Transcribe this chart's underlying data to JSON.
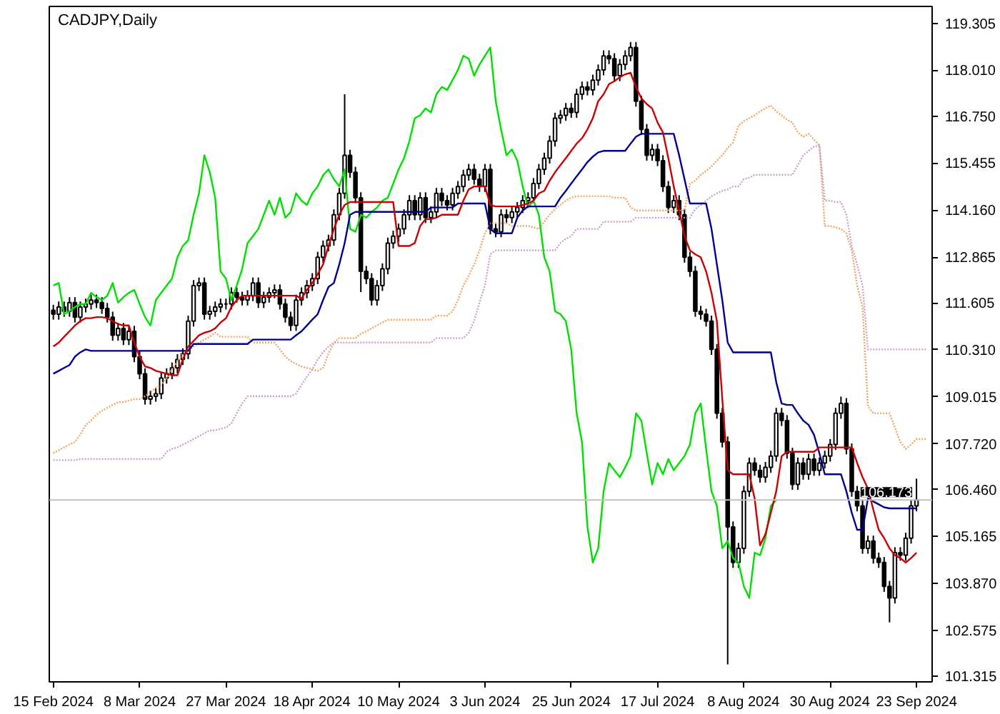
{
  "chart_data": {
    "type": "candlestick",
    "title": "CADJPY,Daily",
    "categories": [
      "15 Feb 2024",
      null,
      null,
      null,
      null,
      null,
      null,
      null,
      null,
      null,
      null,
      null,
      null,
      null,
      null,
      null,
      "8 Mar 2024",
      null,
      null,
      null,
      null,
      null,
      null,
      null,
      null,
      null,
      null,
      null,
      null,
      null,
      null,
      null,
      "27 Mar 2024",
      null,
      null,
      null,
      null,
      null,
      null,
      null,
      null,
      null,
      null,
      null,
      null,
      null,
      null,
      null,
      "18 Apr 2024",
      null,
      null,
      null,
      null,
      null,
      null,
      null,
      null,
      null,
      null,
      null,
      null,
      null,
      null,
      null,
      "10 May 2024",
      null,
      null,
      null,
      null,
      null,
      null,
      null,
      null,
      null,
      null,
      null,
      null,
      null,
      null,
      null,
      "3 Jun 2024",
      null,
      null,
      null,
      null,
      null,
      null,
      null,
      null,
      null,
      null,
      null,
      null,
      null,
      null,
      null,
      "25 Jun 2024",
      null,
      null,
      null,
      null,
      null,
      null,
      null,
      null,
      null,
      null,
      null,
      null,
      null,
      null,
      null,
      "17 Jul 2024",
      null,
      null,
      null,
      null,
      null,
      null,
      null,
      null,
      null,
      null,
      null,
      null,
      null,
      null,
      null,
      "8 Aug 2024",
      null,
      null,
      null,
      null,
      null,
      null,
      null,
      null,
      null,
      null,
      null,
      null,
      null,
      null,
      null,
      "30 Aug 2024",
      null,
      null,
      null,
      null,
      null,
      null,
      null,
      null,
      null,
      null,
      null,
      null,
      null,
      null,
      null,
      "23 Sep 2024",
      null,
      null
    ],
    "ohlc": [
      [
        111.4,
        111.55,
        111.14,
        111.29
      ],
      [
        111.29,
        111.64,
        111.14,
        111.49
      ],
      [
        111.49,
        111.64,
        111.22,
        111.37
      ],
      [
        111.37,
        111.76,
        111.22,
        111.61
      ],
      [
        111.61,
        111.76,
        111.06,
        111.21
      ],
      [
        111.21,
        111.64,
        111.06,
        111.49
      ],
      [
        111.49,
        111.72,
        111.34,
        111.57
      ],
      [
        111.57,
        111.83,
        111.42,
        111.68
      ],
      [
        111.68,
        111.83,
        111.46,
        111.61
      ],
      [
        111.61,
        111.76,
        111.3,
        111.45
      ],
      [
        111.45,
        111.6,
        111.06,
        111.21
      ],
      [
        111.21,
        111.36,
        110.56,
        110.71
      ],
      [
        110.71,
        111.05,
        110.56,
        110.9
      ],
      [
        110.9,
        111.05,
        110.44,
        110.59
      ],
      [
        110.59,
        110.97,
        110.44,
        110.82
      ],
      [
        110.82,
        110.97,
        109.97,
        110.12
      ],
      [
        110.12,
        110.27,
        109.5,
        109.65
      ],
      [
        109.65,
        109.8,
        108.8,
        108.95
      ],
      [
        108.95,
        109.18,
        108.8,
        109.03
      ],
      [
        109.03,
        109.25,
        108.88,
        109.1
      ],
      [
        109.1,
        109.68,
        108.95,
        109.53
      ],
      [
        109.53,
        109.8,
        109.38,
        109.65
      ],
      [
        109.65,
        109.96,
        109.5,
        109.81
      ],
      [
        109.81,
        110.19,
        109.66,
        110.04
      ],
      [
        110.04,
        110.35,
        109.89,
        110.2
      ],
      [
        110.2,
        111.25,
        110.05,
        111.1
      ],
      [
        111.1,
        112.23,
        110.95,
        112.08
      ],
      [
        112.08,
        112.3,
        111.93,
        112.15
      ],
      [
        112.15,
        112.3,
        111.14,
        111.29
      ],
      [
        111.29,
        111.52,
        111.14,
        111.37
      ],
      [
        111.37,
        111.64,
        111.22,
        111.49
      ],
      [
        111.49,
        111.72,
        111.34,
        111.57
      ],
      [
        111.57,
        111.72,
        111.42,
        111.57
      ],
      [
        111.57,
        112.03,
        111.42,
        111.88
      ],
      [
        111.88,
        112.03,
        111.61,
        111.76
      ],
      [
        111.76,
        111.91,
        111.53,
        111.68
      ],
      [
        111.68,
        111.95,
        111.53,
        111.8
      ],
      [
        111.8,
        112.3,
        111.65,
        112.15
      ],
      [
        112.15,
        112.3,
        111.46,
        111.61
      ],
      [
        111.61,
        111.91,
        111.46,
        111.76
      ],
      [
        111.76,
        112.03,
        111.61,
        111.88
      ],
      [
        111.88,
        112.11,
        111.73,
        111.96
      ],
      [
        111.96,
        112.11,
        111.42,
        111.57
      ],
      [
        111.57,
        111.72,
        111.06,
        111.21
      ],
      [
        111.21,
        111.36,
        110.83,
        110.98
      ],
      [
        110.98,
        111.83,
        110.83,
        111.68
      ],
      [
        111.68,
        112.03,
        111.53,
        111.88
      ],
      [
        111.88,
        112.23,
        111.73,
        112.08
      ],
      [
        112.08,
        112.42,
        111.93,
        112.27
      ],
      [
        112.27,
        113.01,
        112.12,
        112.86
      ],
      [
        112.86,
        113.32,
        112.71,
        113.17
      ],
      [
        113.17,
        113.48,
        113.02,
        113.33
      ],
      [
        113.33,
        114.18,
        113.18,
        114.03
      ],
      [
        114.03,
        114.77,
        113.88,
        114.62
      ],
      [
        114.62,
        117.35,
        114.47,
        115.67
      ],
      [
        115.67,
        115.82,
        115.05,
        115.2
      ],
      [
        115.2,
        115.35,
        114.35,
        114.5
      ],
      [
        114.5,
        114.65,
        111.9,
        112.47
      ],
      [
        112.47,
        112.62,
        112.12,
        112.27
      ],
      [
        112.27,
        112.42,
        111.53,
        111.68
      ],
      [
        111.68,
        112.23,
        111.53,
        112.08
      ],
      [
        112.08,
        112.69,
        111.93,
        112.54
      ],
      [
        112.54,
        113.4,
        112.39,
        113.25
      ],
      [
        113.25,
        113.59,
        113.1,
        113.44
      ],
      [
        113.44,
        113.79,
        113.29,
        113.64
      ],
      [
        113.64,
        114.18,
        113.49,
        114.03
      ],
      [
        114.03,
        114.57,
        113.88,
        114.42
      ],
      [
        114.42,
        114.57,
        113.88,
        114.03
      ],
      [
        114.03,
        114.65,
        113.88,
        114.5
      ],
      [
        114.5,
        114.65,
        113.8,
        113.95
      ],
      [
        113.95,
        114.26,
        113.8,
        114.11
      ],
      [
        114.11,
        114.77,
        113.96,
        114.62
      ],
      [
        114.62,
        114.77,
        114.27,
        114.42
      ],
      [
        114.42,
        114.57,
        114.15,
        114.3
      ],
      [
        114.3,
        114.77,
        114.15,
        114.62
      ],
      [
        114.62,
        114.96,
        114.47,
        114.81
      ],
      [
        114.81,
        115.27,
        114.66,
        115.12
      ],
      [
        115.12,
        115.43,
        114.97,
        115.28
      ],
      [
        115.28,
        115.43,
        114.86,
        115.01
      ],
      [
        115.01,
        115.16,
        114.66,
        114.81
      ],
      [
        114.81,
        115.43,
        114.66,
        115.28
      ],
      [
        115.28,
        115.43,
        113.49,
        113.64
      ],
      [
        113.64,
        113.79,
        113.41,
        113.56
      ],
      [
        113.56,
        114.18,
        113.41,
        114.03
      ],
      [
        114.03,
        114.18,
        113.8,
        113.95
      ],
      [
        113.95,
        114.26,
        113.8,
        114.11
      ],
      [
        114.11,
        114.38,
        113.96,
        114.23
      ],
      [
        114.23,
        114.57,
        114.08,
        114.42
      ],
      [
        114.42,
        114.65,
        114.27,
        114.5
      ],
      [
        114.5,
        115.04,
        114.35,
        114.89
      ],
      [
        114.89,
        115.43,
        114.74,
        115.28
      ],
      [
        115.28,
        115.74,
        115.13,
        115.59
      ],
      [
        115.59,
        116.21,
        115.44,
        116.06
      ],
      [
        116.06,
        116.84,
        115.91,
        116.69
      ],
      [
        116.69,
        116.92,
        116.54,
        116.77
      ],
      [
        116.77,
        117.11,
        116.62,
        116.96
      ],
      [
        116.96,
        117.11,
        116.7,
        116.85
      ],
      [
        116.85,
        117.5,
        116.7,
        117.35
      ],
      [
        117.35,
        117.7,
        117.2,
        117.55
      ],
      [
        117.55,
        117.7,
        117.32,
        117.47
      ],
      [
        117.47,
        117.89,
        117.32,
        117.74
      ],
      [
        117.74,
        118.17,
        117.59,
        118.02
      ],
      [
        118.02,
        118.56,
        117.87,
        118.41
      ],
      [
        118.41,
        118.56,
        118.18,
        118.33
      ],
      [
        118.33,
        118.48,
        117.71,
        117.86
      ],
      [
        117.86,
        118.32,
        117.71,
        118.17
      ],
      [
        118.17,
        118.56,
        118.02,
        118.41
      ],
      [
        118.41,
        118.79,
        118.26,
        118.64
      ],
      [
        118.64,
        118.79,
        117.01,
        117.16
      ],
      [
        117.16,
        117.31,
        116.23,
        116.38
      ],
      [
        116.38,
        116.53,
        115.52,
        115.67
      ],
      [
        115.67,
        115.98,
        115.52,
        115.83
      ],
      [
        115.83,
        115.98,
        115.37,
        115.52
      ],
      [
        115.52,
        115.67,
        114.66,
        114.81
      ],
      [
        114.81,
        114.96,
        114.08,
        114.23
      ],
      [
        114.23,
        114.57,
        114.08,
        114.42
      ],
      [
        114.42,
        114.57,
        113.88,
        114.03
      ],
      [
        114.03,
        114.18,
        112.71,
        112.86
      ],
      [
        112.86,
        113.01,
        112.32,
        112.47
      ],
      [
        112.47,
        112.62,
        111.22,
        111.37
      ],
      [
        111.37,
        111.52,
        111.14,
        111.29
      ],
      [
        111.29,
        111.44,
        110.95,
        111.1
      ],
      [
        111.1,
        111.25,
        110.17,
        110.32
      ],
      [
        110.32,
        110.47,
        108.41,
        108.56
      ],
      [
        108.56,
        108.71,
        107.62,
        107.77
      ],
      [
        107.77,
        107.92,
        101.64,
        105.43
      ],
      [
        105.43,
        105.58,
        104.3,
        104.45
      ],
      [
        104.45,
        104.99,
        104.3,
        104.84
      ],
      [
        104.84,
        106.56,
        104.69,
        106.41
      ],
      [
        106.41,
        107.34,
        106.26,
        107.19
      ],
      [
        107.19,
        107.34,
        106.84,
        106.99
      ],
      [
        106.99,
        107.14,
        106.65,
        106.8
      ],
      [
        106.8,
        107.22,
        106.65,
        107.07
      ],
      [
        107.07,
        107.53,
        106.92,
        107.38
      ],
      [
        107.38,
        108.71,
        107.23,
        108.56
      ],
      [
        108.56,
        108.71,
        108.21,
        108.36
      ],
      [
        108.36,
        108.51,
        107.31,
        107.46
      ],
      [
        107.46,
        107.61,
        106.45,
        106.6
      ],
      [
        106.6,
        107.34,
        106.45,
        107.19
      ],
      [
        107.19,
        107.34,
        106.73,
        106.88
      ],
      [
        106.88,
        107.45,
        106.73,
        107.3
      ],
      [
        107.3,
        107.45,
        106.84,
        106.99
      ],
      [
        106.99,
        107.34,
        106.84,
        107.19
      ],
      [
        107.19,
        107.53,
        107.04,
        107.38
      ],
      [
        107.38,
        107.85,
        107.23,
        107.7
      ],
      [
        107.7,
        108.71,
        107.55,
        108.56
      ],
      [
        108.56,
        109.02,
        108.41,
        108.83
      ],
      [
        108.83,
        108.98,
        107.43,
        107.58
      ],
      [
        107.58,
        107.73,
        106.26,
        106.41
      ],
      [
        106.41,
        106.56,
        105.86,
        106.01
      ],
      [
        106.01,
        106.16,
        104.69,
        104.84
      ],
      [
        104.84,
        105.19,
        104.69,
        105.04
      ],
      [
        105.04,
        105.19,
        104.42,
        104.57
      ],
      [
        104.57,
        104.72,
        104.3,
        104.45
      ],
      [
        104.45,
        104.6,
        103.64,
        103.79
      ],
      [
        103.79,
        103.94,
        102.8,
        103.47
      ],
      [
        103.47,
        104.87,
        103.32,
        104.72
      ],
      [
        104.72,
        104.87,
        104.5,
        104.65
      ],
      [
        104.65,
        105.27,
        104.5,
        105.12
      ],
      [
        105.12,
        106.16,
        104.97,
        106.01
      ],
      [
        106.01,
        106.76,
        105.86,
        106.17
      ],
      null,
      null
    ],
    "series": [
      {
        "type": "line",
        "line_style": "dotted",
        "color": "#f4a460",
        "values": [
          107.46,
          107.54,
          107.62,
          107.7,
          107.77,
          107.97,
          108.24,
          108.36,
          108.52,
          108.63,
          108.71,
          108.79,
          108.87,
          108.87,
          108.91,
          108.95,
          108.95,
          109.03,
          109.14,
          109.26,
          109.34,
          109.53,
          109.77,
          110.0,
          110.2,
          110.28,
          110.4,
          110.51,
          110.59,
          110.67,
          110.78,
          110.67,
          110.67,
          110.67,
          110.67,
          110.67,
          110.67,
          110.51,
          110.51,
          110.51,
          110.51,
          110.51,
          110.32,
          110.12,
          110.0,
          109.92,
          109.85,
          109.81,
          109.77,
          109.73,
          109.81,
          110.2,
          110.51,
          110.63,
          110.63,
          110.63,
          110.63,
          110.75,
          110.82,
          110.9,
          110.98,
          111.06,
          111.14,
          111.14,
          111.14,
          111.14,
          111.14,
          111.14,
          111.14,
          111.14,
          111.14,
          111.25,
          111.25,
          111.25,
          111.37,
          111.68,
          112.08,
          112.35,
          112.66,
          113.05,
          113.52,
          113.8,
          113.8,
          113.8,
          113.8,
          113.72,
          113.72,
          113.72,
          113.72,
          113.68,
          113.64,
          113.84,
          114.03,
          114.19,
          114.3,
          114.42,
          114.5,
          114.54,
          114.54,
          114.54,
          114.54,
          114.54,
          114.54,
          114.54,
          114.5,
          114.5,
          114.5,
          114.23,
          114.15,
          114.15,
          114.15,
          114.15,
          114.15,
          114.15,
          114.15,
          114.15,
          114.15,
          114.15,
          114.89,
          114.97,
          115.13,
          115.24,
          115.36,
          115.52,
          115.67,
          115.87,
          116.02,
          116.49,
          116.61,
          116.69,
          116.77,
          116.88,
          116.96,
          117.04,
          116.88,
          116.77,
          116.65,
          116.57,
          116.3,
          116.18,
          116.26,
          116.1,
          115.94,
          113.72,
          113.72,
          113.68,
          113.64,
          113.52,
          113.05,
          112.08,
          111.49,
          108.75,
          108.56,
          108.56,
          108.56,
          108.56,
          108.17,
          107.77,
          107.58,
          107.7,
          107.85,
          107.85,
          107.85
        ]
      },
      {
        "type": "line",
        "line_style": "dotted",
        "color": "#c8a2c8",
        "values": [
          107.27,
          107.27,
          107.27,
          107.27,
          107.27,
          107.3,
          107.3,
          107.3,
          107.3,
          107.3,
          107.3,
          107.3,
          107.3,
          107.3,
          107.3,
          107.3,
          107.3,
          107.3,
          107.3,
          107.3,
          107.3,
          107.5,
          107.58,
          107.62,
          107.7,
          107.77,
          107.85,
          107.93,
          108.01,
          108.09,
          108.09,
          108.13,
          108.17,
          108.28,
          108.56,
          108.83,
          109.03,
          109.03,
          109.03,
          109.03,
          109.03,
          109.03,
          109.03,
          109.03,
          109.03,
          109.1,
          109.34,
          109.57,
          109.77,
          110.04,
          110.24,
          110.4,
          110.51,
          110.51,
          110.51,
          110.51,
          110.51,
          110.51,
          110.51,
          110.51,
          110.51,
          110.51,
          110.51,
          110.51,
          110.51,
          110.51,
          110.51,
          110.51,
          110.51,
          110.51,
          110.51,
          110.63,
          110.63,
          110.63,
          110.63,
          110.63,
          110.63,
          110.78,
          111.1,
          111.61,
          112.08,
          112.94,
          113.05,
          113.05,
          113.05,
          113.05,
          113.05,
          113.05,
          113.05,
          113.05,
          113.05,
          113.05,
          113.05,
          113.05,
          113.25,
          113.37,
          113.44,
          113.64,
          113.64,
          113.64,
          113.64,
          113.64,
          113.84,
          113.84,
          113.84,
          113.84,
          113.84,
          113.84,
          113.95,
          113.95,
          113.95,
          113.95,
          113.95,
          113.95,
          113.95,
          113.95,
          113.95,
          113.95,
          113.95,
          114.19,
          114.3,
          114.42,
          114.54,
          114.62,
          114.69,
          114.73,
          114.81,
          114.81,
          115.01,
          115.05,
          115.13,
          115.13,
          115.13,
          115.13,
          115.13,
          115.13,
          115.13,
          115.13,
          115.4,
          115.67,
          115.79,
          115.91,
          115.94,
          114.42,
          114.42,
          114.38,
          114.38,
          114.03,
          113.17,
          112.66,
          112.08,
          110.32,
          110.32,
          110.32,
          110.32,
          110.32,
          110.32,
          110.32,
          110.32,
          110.32,
          110.32,
          110.32,
          110.32
        ]
      },
      {
        "type": "line",
        "color": "#00e000",
        "values": [
          112.08,
          112.15,
          111.29,
          111.37,
          111.49,
          111.57,
          111.57,
          111.88,
          111.76,
          111.68,
          111.8,
          112.15,
          111.61,
          111.76,
          111.88,
          111.96,
          111.57,
          111.21,
          110.98,
          111.68,
          111.88,
          112.08,
          112.27,
          112.86,
          113.17,
          113.33,
          114.03,
          114.62,
          115.67,
          115.2,
          114.5,
          112.47,
          112.27,
          111.68,
          112.08,
          112.54,
          113.25,
          113.44,
          113.64,
          114.03,
          114.42,
          114.03,
          114.5,
          113.95,
          114.11,
          114.62,
          114.42,
          114.3,
          114.62,
          114.81,
          115.12,
          115.28,
          115.01,
          114.81,
          115.28,
          113.64,
          113.56,
          114.03,
          113.95,
          114.11,
          114.23,
          114.42,
          114.5,
          114.89,
          115.28,
          115.59,
          116.06,
          116.69,
          116.77,
          116.96,
          116.85,
          117.35,
          117.55,
          117.47,
          117.74,
          118.02,
          118.41,
          118.33,
          117.86,
          118.17,
          118.41,
          118.64,
          117.16,
          116.38,
          115.67,
          115.83,
          115.52,
          114.81,
          114.23,
          114.42,
          114.03,
          112.86,
          112.47,
          111.37,
          111.29,
          111.1,
          110.32,
          108.56,
          107.77,
          105.43,
          104.45,
          104.84,
          106.41,
          107.19,
          106.99,
          106.8,
          107.07,
          107.38,
          108.56,
          108.36,
          107.46,
          106.6,
          107.19,
          106.88,
          107.3,
          106.99,
          107.19,
          107.38,
          107.7,
          108.56,
          108.83,
          107.58,
          106.41,
          106.01,
          104.84,
          105.04,
          104.57,
          104.45,
          103.79,
          103.47,
          104.72,
          104.65,
          105.12,
          106.01,
          106.17,
          null,
          null,
          null,
          null,
          null,
          null,
          null,
          null,
          null,
          null,
          null,
          null,
          null,
          null,
          null,
          null,
          null,
          null,
          null,
          null,
          null,
          null,
          null,
          null,
          null,
          null,
          null,
          null
        ]
      },
      {
        "type": "line",
        "color": "#000090",
        "values": [
          109.65,
          109.73,
          109.81,
          109.89,
          110.12,
          110.24,
          110.32,
          110.28,
          110.28,
          110.28,
          110.28,
          110.28,
          110.28,
          110.28,
          110.28,
          110.28,
          110.28,
          110.28,
          110.28,
          110.28,
          110.28,
          110.28,
          110.28,
          110.28,
          110.28,
          110.28,
          110.47,
          110.47,
          110.47,
          110.47,
          110.47,
          110.47,
          110.47,
          110.47,
          110.47,
          110.47,
          110.47,
          110.59,
          110.59,
          110.59,
          110.59,
          110.59,
          110.59,
          110.59,
          110.59,
          110.71,
          110.82,
          110.98,
          111.14,
          111.29,
          111.68,
          112.04,
          112.15,
          112.66,
          113.25,
          114.03,
          114.11,
          114.11,
          114.11,
          114.11,
          114.11,
          114.11,
          114.11,
          114.11,
          114.11,
          114.11,
          114.11,
          114.11,
          114.11,
          114.11,
          114.23,
          114.23,
          114.23,
          114.23,
          114.23,
          114.34,
          114.34,
          114.34,
          114.34,
          114.34,
          114.34,
          113.64,
          113.52,
          113.52,
          113.52,
          113.52,
          113.95,
          114.15,
          114.26,
          114.26,
          114.26,
          114.26,
          114.26,
          114.26,
          114.5,
          114.69,
          114.89,
          115.09,
          115.28,
          115.48,
          115.63,
          115.75,
          115.79,
          115.79,
          115.79,
          115.79,
          115.79,
          115.99,
          116.18,
          116.26,
          116.26,
          116.26,
          116.26,
          116.26,
          116.26,
          116.26,
          115.67,
          115.01,
          114.34,
          114.34,
          114.34,
          114.34,
          113.64,
          112.66,
          111.68,
          110.51,
          110.24,
          110.24,
          110.24,
          110.24,
          110.24,
          110.24,
          110.24,
          110.24,
          109.42,
          108.83,
          108.79,
          108.79,
          108.56,
          108.36,
          108.24,
          107.97,
          107.46,
          106.88,
          106.88,
          106.88,
          106.88,
          106.41,
          105.82,
          105.35,
          105.35,
          106.21,
          106.13,
          106.05,
          105.97,
          105.94,
          105.94,
          105.94,
          105.94,
          105.94,
          105.94,
          null,
          null
        ]
      },
      {
        "type": "line",
        "color": "#cc0000",
        "values": [
          110.4,
          110.51,
          110.67,
          110.82,
          110.98,
          111.1,
          111.18,
          111.18,
          111.21,
          111.21,
          111.18,
          111.1,
          111.02,
          110.98,
          110.98,
          110.51,
          110.12,
          109.85,
          109.81,
          109.73,
          109.69,
          109.65,
          109.61,
          109.61,
          110.04,
          110.4,
          110.55,
          110.71,
          110.78,
          110.82,
          110.9,
          111.06,
          111.18,
          111.49,
          111.68,
          111.8,
          111.8,
          111.8,
          111.8,
          111.8,
          111.8,
          111.8,
          111.8,
          111.8,
          111.8,
          111.8,
          111.72,
          111.96,
          112.15,
          112.39,
          112.66,
          113.17,
          113.64,
          114.03,
          114.3,
          114.38,
          114.38,
          114.38,
          114.38,
          114.38,
          114.38,
          114.38,
          114.38,
          114.38,
          113.17,
          113.17,
          113.17,
          113.25,
          113.72,
          113.91,
          113.91,
          113.95,
          114.03,
          114.03,
          114.03,
          114.03,
          114.42,
          114.73,
          114.81,
          114.81,
          114.81,
          114.3,
          114.26,
          114.26,
          114.26,
          114.26,
          114.26,
          114.3,
          114.34,
          114.42,
          114.62,
          114.69,
          114.97,
          115.2,
          115.4,
          115.59,
          115.79,
          115.99,
          116.14,
          116.38,
          116.69,
          117.16,
          117.35,
          117.63,
          117.71,
          117.82,
          117.9,
          117.94,
          117.55,
          117.24,
          117.08,
          116.96,
          116.57,
          116.3,
          115.59,
          114.81,
          114.15,
          113.44,
          113.05,
          112.94,
          112.86,
          112.47,
          111.88,
          111.1,
          108.95,
          106.99,
          106.88,
          106.88,
          106.88,
          106.88,
          106.21,
          104.92,
          105.23,
          105.82,
          106.41,
          107.38,
          107.5,
          107.5,
          107.5,
          107.5,
          107.5,
          107.5,
          107.62,
          107.62,
          107.62,
          107.62,
          107.62,
          107.62,
          107.62,
          107.19,
          106.8,
          106.48,
          105.9,
          105.35,
          105.12,
          104.84,
          104.65,
          104.57,
          104.45,
          104.57,
          104.72,
          null,
          null
        ]
      }
    ],
    "ylim": [
      101.16,
      119.77
    ],
    "yticks": [
      {
        "value": 119.305,
        "label": "119.305"
      },
      {
        "value": 118.01,
        "label": "118.010"
      },
      {
        "value": 116.75,
        "label": "116.750"
      },
      {
        "value": 115.455,
        "label": "115.455"
      },
      {
        "value": 114.16,
        "label": "114.160"
      },
      {
        "value": 112.865,
        "label": "112.865"
      },
      {
        "value": 111.605,
        "label": "111.605"
      },
      {
        "value": 110.31,
        "label": "110.310"
      },
      {
        "value": 109.015,
        "label": "109.015"
      },
      {
        "value": 107.72,
        "label": "107.720"
      },
      {
        "value": 106.46,
        "label": "106.460"
      },
      {
        "value": 105.165,
        "label": "105.165"
      },
      {
        "value": 103.87,
        "label": "103.870"
      },
      {
        "value": 102.575,
        "label": "102.575"
      },
      {
        "value": 101.315,
        "label": "101.315"
      }
    ],
    "ref_lines": [
      {
        "axis": "y",
        "value": 106.173,
        "label": "106.173",
        "color": "#c0c0c0"
      }
    ]
  }
}
